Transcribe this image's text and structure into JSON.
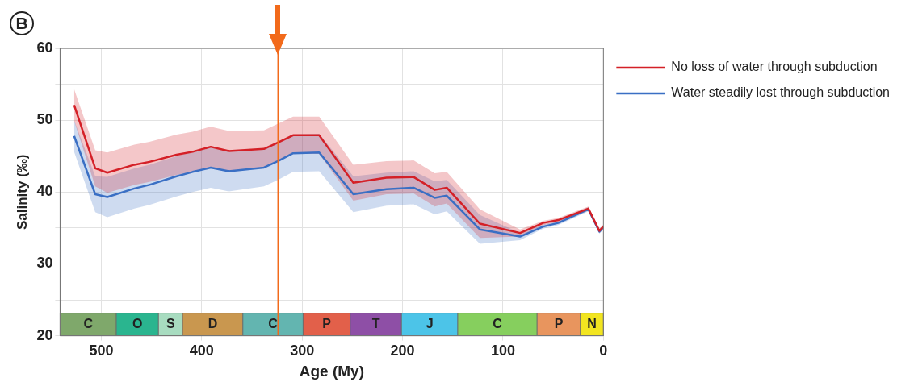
{
  "chart_data": {
    "type": "line",
    "xlabel": "Age (My)",
    "ylabel": "Salinity (‰)",
    "annotations": [
      "B"
    ],
    "x": [
      527,
      506,
      494,
      467,
      452,
      425,
      409,
      391,
      373,
      338,
      324,
      309,
      283,
      249,
      216,
      189,
      168,
      156,
      123,
      83,
      60,
      45,
      15,
      4,
      0
    ],
    "series": [
      {
        "name": "No loss of water through subduction",
        "color": "#d42027",
        "values": [
          52.1,
          43.3,
          42.7,
          43.8,
          44.2,
          45.2,
          45.6,
          46.3,
          45.7,
          46.0,
          46.9,
          47.9,
          47.9,
          41.3,
          42.0,
          42.1,
          40.3,
          40.6,
          35.6,
          34.3,
          35.7,
          36.1,
          37.7,
          34.6,
          35.2
        ],
        "upper": [
          54.3,
          45.8,
          45.5,
          46.6,
          47.0,
          48.0,
          48.4,
          49.1,
          48.5,
          48.6,
          49.5,
          50.5,
          50.5,
          43.8,
          44.3,
          44.4,
          42.6,
          42.8,
          37.6,
          34.8,
          36.0,
          36.4,
          38.0,
          34.9,
          35.5
        ],
        "lower": [
          49.9,
          40.8,
          39.9,
          41.0,
          41.4,
          42.4,
          42.8,
          43.5,
          42.9,
          43.4,
          44.3,
          45.3,
          45.3,
          38.8,
          39.7,
          39.8,
          38.0,
          38.4,
          33.6,
          33.8,
          35.4,
          35.8,
          37.4,
          34.3,
          34.9
        ]
      },
      {
        "name": "Water steadily lost through subduction",
        "color": "#3a6fc4",
        "values": [
          47.8,
          39.7,
          39.3,
          40.5,
          41.0,
          42.2,
          42.8,
          43.4,
          42.9,
          43.4,
          44.3,
          45.4,
          45.5,
          39.7,
          40.4,
          40.6,
          39.2,
          39.5,
          34.8,
          33.8,
          35.2,
          35.7,
          37.6,
          34.5,
          35.1
        ],
        "upper": [
          50.0,
          42.2,
          42.1,
          43.3,
          43.8,
          45.0,
          45.6,
          46.2,
          45.7,
          46.0,
          46.9,
          48.0,
          48.1,
          42.2,
          42.7,
          42.9,
          41.5,
          41.7,
          36.8,
          34.3,
          35.5,
          36.0,
          37.9,
          34.8,
          35.4
        ],
        "lower": [
          45.6,
          37.2,
          36.5,
          37.7,
          38.2,
          39.4,
          40.0,
          40.6,
          40.1,
          40.8,
          41.7,
          42.8,
          42.9,
          37.2,
          38.1,
          38.3,
          36.9,
          37.3,
          32.8,
          33.3,
          34.9,
          35.4,
          37.3,
          34.2,
          34.8
        ]
      }
    ],
    "xlim": [
      541,
      0
    ],
    "xticks": [
      500,
      400,
      300,
      200,
      100,
      0
    ],
    "ylim": [
      20,
      60
    ],
    "yticks": [
      20,
      {
        "value": 25,
        "label": null
      },
      30,
      {
        "value": 35,
        "label": null
      },
      40,
      {
        "value": 45,
        "label": null
      },
      50,
      {
        "value": 55,
        "label": null
      },
      60
    ],
    "ref_lines": [
      {
        "axis": "x",
        "value": 324,
        "color": "#f26a1b"
      }
    ],
    "bands": [
      {
        "axis": "x",
        "from": 541,
        "to": 485,
        "label": "C",
        "color": "#7fa86b"
      },
      {
        "axis": "x",
        "from": 485,
        "to": 443,
        "label": "O",
        "color": "#2ab58f"
      },
      {
        "axis": "x",
        "from": 443,
        "to": 419,
        "label": "S",
        "color": "#a8dcc0"
      },
      {
        "axis": "x",
        "from": 419,
        "to": 359,
        "label": "D",
        "color": "#c9974f"
      },
      {
        "axis": "x",
        "from": 359,
        "to": 299,
        "label": "C",
        "color": "#63b5b0"
      },
      {
        "axis": "x",
        "from": 299,
        "to": 252,
        "label": "P",
        "color": "#e2604a"
      },
      {
        "axis": "x",
        "from": 252,
        "to": 201,
        "label": "T",
        "color": "#8e4fa6"
      },
      {
        "axis": "x",
        "from": 201,
        "to": 145,
        "label": "J",
        "color": "#4cc4e8"
      },
      {
        "axis": "x",
        "from": 145,
        "to": 66,
        "label": "C",
        "color": "#86cf5e"
      },
      {
        "axis": "x",
        "from": 66,
        "to": 23,
        "label": "P",
        "color": "#e8955e"
      },
      {
        "axis": "x",
        "from": 23,
        "to": 0,
        "label": "N",
        "color": "#f2e520"
      }
    ],
    "grid": true,
    "legend": "top right",
    "marker": "none",
    "line_style": "solid"
  }
}
